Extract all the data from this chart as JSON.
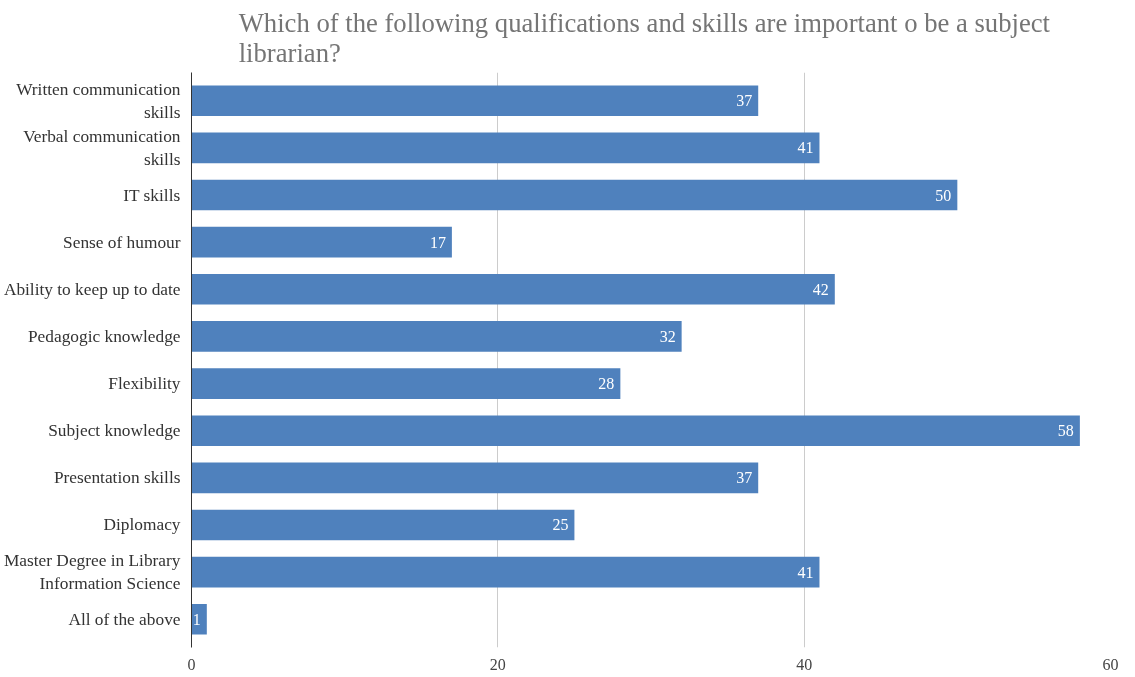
{
  "chart_data": {
    "type": "bar",
    "orientation": "horizontal",
    "title": "Which of the following qualifications and skills are  important  o be a subject librarian?",
    "categories": [
      "Written communication skills",
      "Verbal communication skills",
      "IT skills",
      "Sense of humour",
      "Ability to keep up to date",
      "Pedagogic knowledge",
      "Flexibility",
      "Subject knowledge",
      "Presentation skills",
      "Diplomacy",
      "Master Degree in Library Information Science",
      "All of the above"
    ],
    "values": [
      37,
      41,
      50,
      17,
      42,
      32,
      28,
      58,
      37,
      25,
      41,
      1
    ],
    "color": "#4f81bd",
    "xlim": [
      0,
      60
    ],
    "xticks": [
      0,
      20,
      40,
      60
    ],
    "grid": "x",
    "data_labels": true
  }
}
